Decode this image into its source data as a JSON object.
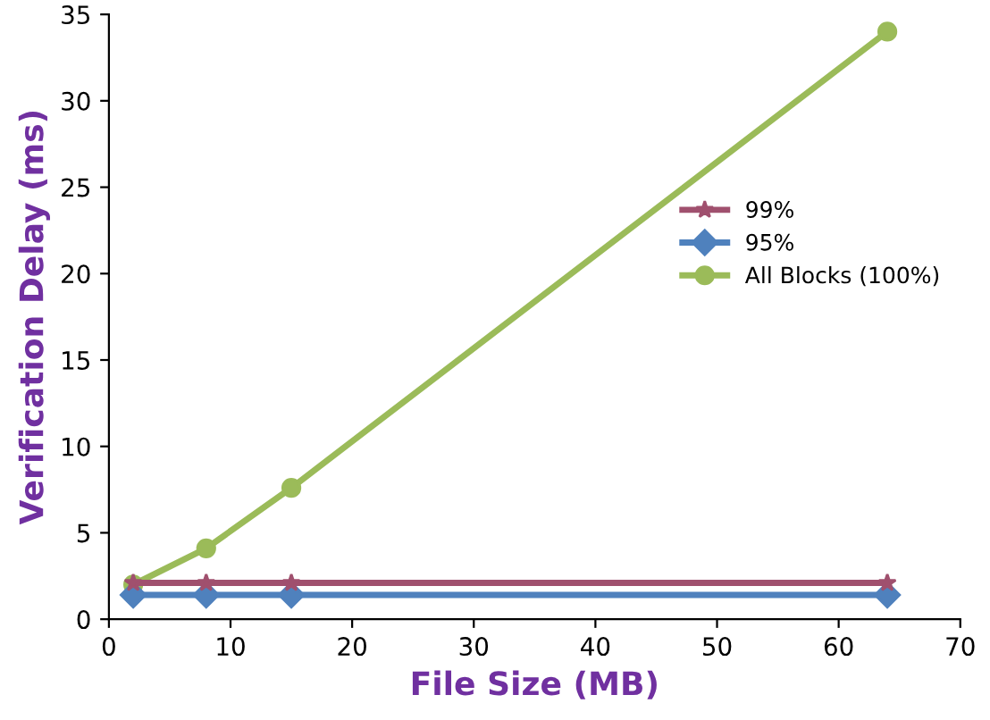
{
  "chart_data": {
    "type": "line",
    "xlabel": "File Size (MB)",
    "ylabel": "Verification Delay (ms)",
    "x": [
      2,
      8,
      15,
      64
    ],
    "series": [
      {
        "name": "99%",
        "color": "#a0506e",
        "values": [
          2.1,
          2.1,
          2.1,
          2.1
        ],
        "marker": "star"
      },
      {
        "name": "95%",
        "color": "#4f81bd",
        "values": [
          1.4,
          1.4,
          1.4,
          1.4
        ],
        "marker": "diamond"
      },
      {
        "name": "All Blocks (100%)",
        "color": "#9bbb59",
        "values": [
          2.0,
          4.1,
          7.6,
          34.0
        ],
        "marker": "circle"
      }
    ],
    "xlim": [
      0,
      70
    ],
    "xticks": [
      0,
      10,
      20,
      30,
      40,
      50,
      60,
      70
    ],
    "ylim": [
      0,
      35
    ],
    "yticks": [
      0,
      5,
      10,
      15,
      20,
      25,
      30,
      35
    ],
    "grid": false,
    "legend": "right"
  }
}
